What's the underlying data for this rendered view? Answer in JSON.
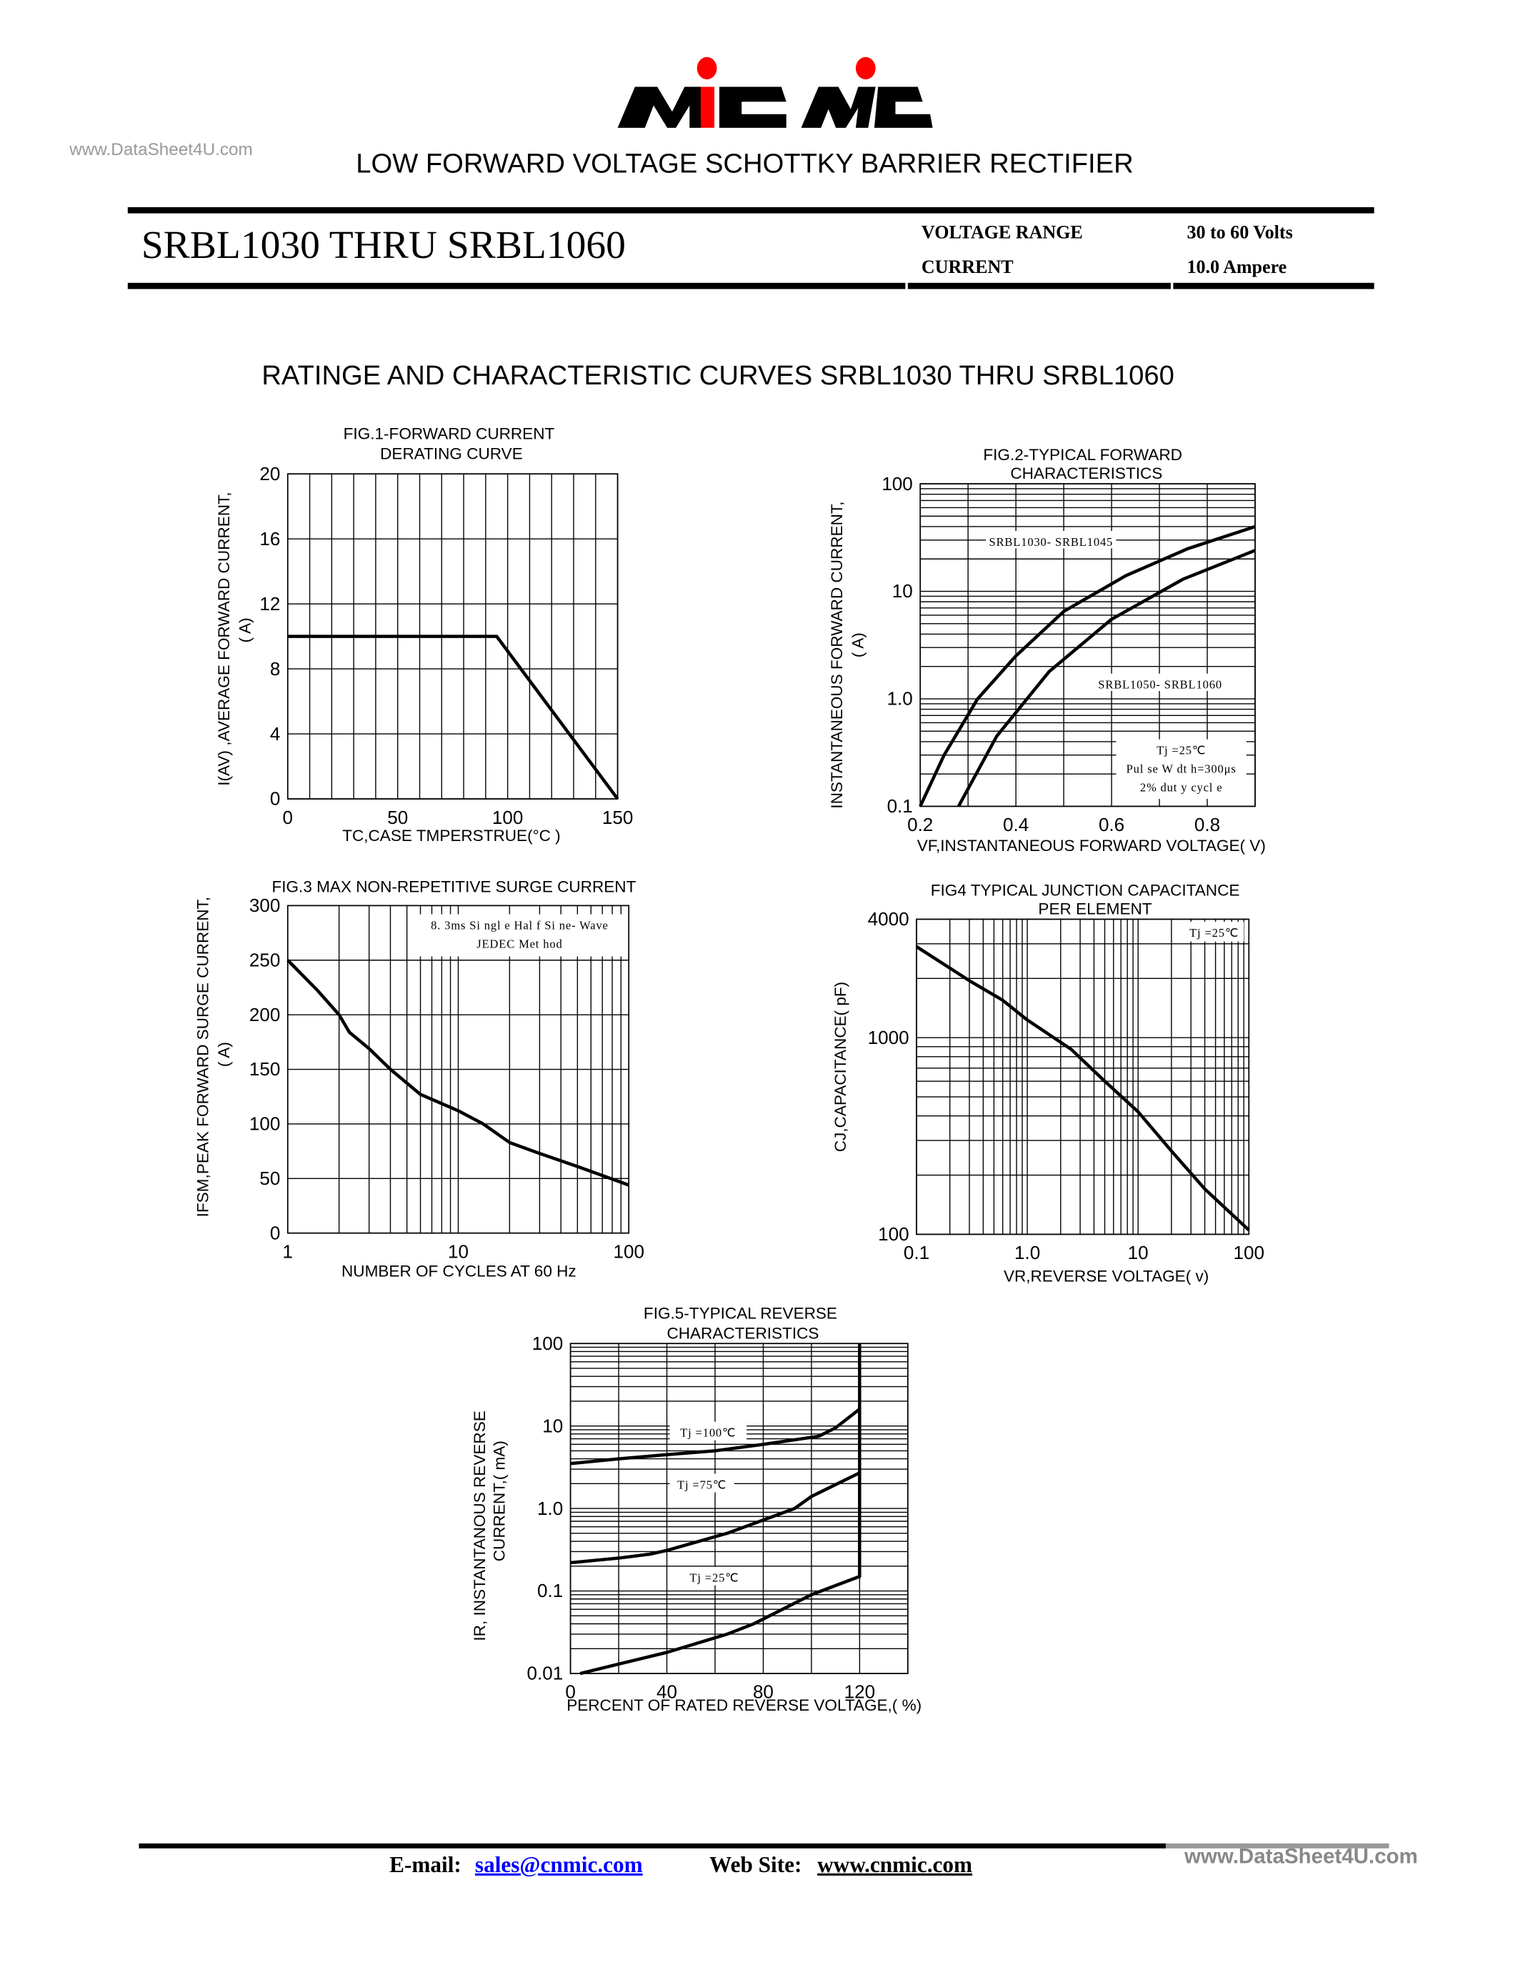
{
  "header": {
    "watermark": "www.DataSheet4U.com",
    "logo_text": "MIC MC",
    "subtitle": "LOW FORWARD VOLTAGE SCHOTTKY BARRIER RECTIFIER",
    "part_title": "SRBL1030 THRU SRBL1060",
    "specs": [
      {
        "label": "VOLTAGE RANGE",
        "value": "30 to 60 Volts"
      },
      {
        "label": "CURRENT",
        "value": "10.0 Ampere"
      }
    ]
  },
  "section_title": "RATINGE AND CHARACTERISTIC CURVES SRBL1030 THRU SRBL1060",
  "chart_data": [
    {
      "id": "fig1",
      "type": "line",
      "title": [
        "FIG.1-FORWARD CURRENT",
        "DERATING CURVE"
      ],
      "ylabel": [
        "I(AV) ,AVERAGE FORWARD CURRENT,",
        "( A)"
      ],
      "xlabel": "TC,CASE TMPERSTRUE(°C )",
      "xscale": "linear",
      "xlim": [
        0,
        150
      ],
      "yscale": "linear",
      "ylim": [
        0,
        20
      ],
      "x_ticks": [
        {
          "value": 0,
          "label": "0"
        },
        {
          "value": 50,
          "label": "50"
        },
        {
          "value": 100,
          "label": "100"
        },
        {
          "value": 150,
          "label": "150"
        }
      ],
      "y_ticks": [
        {
          "value": 0,
          "label": "0"
        },
        {
          "value": 4,
          "label": "4"
        },
        {
          "value": 8,
          "label": "8"
        },
        {
          "value": 12,
          "label": "12"
        },
        {
          "value": 16,
          "label": "16"
        },
        {
          "value": 20,
          "label": "20"
        }
      ],
      "grid": true,
      "series": [
        {
          "points": [
            [
              0,
              10
            ],
            [
              95,
              10
            ],
            [
              150,
              0
            ]
          ]
        }
      ],
      "annotations": []
    },
    {
      "id": "fig2",
      "type": "line",
      "title": [
        "FIG.2-TYPICAL FORWARD",
        "CHARACTERISTICS"
      ],
      "ylabel": [
        "INSTANTANEOUS FORWARD CURRENT,",
        "( A)"
      ],
      "xlabel": "VF,INSTANTANEOUS FORWARD VOLTAGE( V)",
      "xscale": "linear",
      "xlim": [
        0.2,
        0.9
      ],
      "yscale": "log",
      "ylim": [
        0.1,
        100
      ],
      "x_ticks": [
        {
          "value": 0.2,
          "label": "0.2"
        },
        {
          "value": 0.4,
          "label": "0.4"
        },
        {
          "value": 0.6,
          "label": "0.6"
        },
        {
          "value": 0.8,
          "label": "0.8"
        }
      ],
      "y_ticks": [
        {
          "value": 0.1,
          "label": "0.1"
        },
        {
          "value": 1,
          "label": "1.0"
        },
        {
          "value": 10,
          "label": "10"
        },
        {
          "value": 100,
          "label": "100"
        }
      ],
      "grid": true,
      "series": [
        {
          "name": "SRBL1030- SRBL1045",
          "points": [
            [
              0.2,
              0.1
            ],
            [
              0.25,
              0.3
            ],
            [
              0.32,
              1.0
            ],
            [
              0.4,
              2.5
            ],
            [
              0.5,
              6.5
            ],
            [
              0.63,
              14
            ],
            [
              0.76,
              25
            ],
            [
              0.9,
              40
            ]
          ]
        },
        {
          "name": "SRBL1050- SRBL1060",
          "points": [
            [
              0.28,
              0.1
            ],
            [
              0.36,
              0.45
            ],
            [
              0.47,
              1.8
            ],
            [
              0.6,
              5.5
            ],
            [
              0.75,
              13
            ],
            [
              0.9,
              24
            ]
          ]
        }
      ],
      "annotations": [
        "Tj =25℃",
        "Pul se  W dt h=300μs",
        "2% dut y  cycl e"
      ]
    },
    {
      "id": "fig3",
      "type": "line",
      "title": [
        "FIG.3 MAX NON-REPETITIVE SURGE CURRENT"
      ],
      "ylabel": [
        "IFSM,PEAK FORWARD SURGE CURRENT,",
        "( A)"
      ],
      "xlabel": "NUMBER OF CYCLES AT 60 Hz",
      "xscale": "log",
      "xlim": [
        1,
        100
      ],
      "yscale": "linear",
      "ylim": [
        0,
        300
      ],
      "x_ticks": [
        {
          "value": 1,
          "label": "1"
        },
        {
          "value": 10,
          "label": "10"
        },
        {
          "value": 100,
          "label": "100"
        }
      ],
      "y_ticks": [
        {
          "value": 0,
          "label": "0"
        },
        {
          "value": 50,
          "label": "50"
        },
        {
          "value": 100,
          "label": "100"
        },
        {
          "value": 150,
          "label": "150"
        },
        {
          "value": 200,
          "label": "200"
        },
        {
          "value": 250,
          "label": "250"
        },
        {
          "value": 300,
          "label": "300"
        }
      ],
      "grid": true,
      "series": [
        {
          "points": [
            [
              1,
              250
            ],
            [
              1.5,
              222
            ],
            [
              2,
              200
            ],
            [
              2.3,
              184
            ],
            [
              3,
              169
            ],
            [
              4,
              150
            ],
            [
              6,
              127
            ],
            [
              10,
              112
            ],
            [
              14,
              100
            ],
            [
              20,
              83
            ],
            [
              30,
              73
            ],
            [
              50,
              61
            ],
            [
              100,
              44
            ]
          ]
        }
      ],
      "annotations": [
        "8. 3ms  Si ngl e  Hal f  Si ne- Wave",
        "JEDEC  Met hod"
      ]
    },
    {
      "id": "fig4",
      "type": "line",
      "title": [
        "FIG4 TYPICAL JUNCTION CAPACITANCE",
        "PER ELEMENT"
      ],
      "ylabel": [
        "CJ,CAPACITANCE( pF)"
      ],
      "xlabel": "VR,REVERSE VOLTAGE( v)",
      "xscale": "log",
      "xlim": [
        0.1,
        100
      ],
      "yscale": "log",
      "ylim": [
        100,
        4000
      ],
      "x_ticks": [
        {
          "value": 0.1,
          "label": "0.1"
        },
        {
          "value": 1,
          "label": "1.0"
        },
        {
          "value": 10,
          "label": "10"
        },
        {
          "value": 100,
          "label": "100"
        }
      ],
      "y_ticks": [
        {
          "value": 100,
          "label": "100"
        },
        {
          "value": 1000,
          "label": "1000"
        },
        {
          "value": 4000,
          "label": "4000"
        }
      ],
      "grid": true,
      "series": [
        {
          "points": [
            [
              0.1,
              2900
            ],
            [
              0.3,
              1950
            ],
            [
              0.6,
              1550
            ],
            [
              1,
              1230
            ],
            [
              2.5,
              870
            ],
            [
              5,
              600
            ],
            [
              10,
              420
            ],
            [
              20,
              265
            ],
            [
              40,
              170
            ],
            [
              100,
              105
            ]
          ]
        }
      ],
      "annotations": [
        "Tj =25℃"
      ]
    },
    {
      "id": "fig5",
      "type": "line",
      "title": [
        "FIG.5-TYPICAL REVERSE",
        "CHARACTERISTICS"
      ],
      "ylabel": [
        "IR, INSTANTANOUS REVERSE",
        "CURRENT,( mA)"
      ],
      "xlabel": "PERCENT OF RATED REVERSE VOLTAGE,( %)",
      "xscale": "linear",
      "xlim": [
        0,
        140
      ],
      "yscale": "log",
      "ylim": [
        0.01,
        100
      ],
      "x_ticks": [
        {
          "value": 0,
          "label": "0"
        },
        {
          "value": 40,
          "label": "40"
        },
        {
          "value": 80,
          "label": "80"
        },
        {
          "value": 120,
          "label": "120"
        }
      ],
      "y_ticks": [
        {
          "value": 0.01,
          "label": "0.01"
        },
        {
          "value": 0.1,
          "label": "0.1"
        },
        {
          "value": 1,
          "label": "1.0"
        },
        {
          "value": 10,
          "label": "10"
        },
        {
          "value": 100,
          "label": "100"
        }
      ],
      "grid": true,
      "series": [
        {
          "name": "Tj =100℃",
          "points": [
            [
              0,
              3.5
            ],
            [
              20,
              4
            ],
            [
              40,
              4.5
            ],
            [
              60,
              5
            ],
            [
              80,
              6
            ],
            [
              103,
              7.5
            ],
            [
              110,
              9.5
            ],
            [
              120,
              16
            ]
          ]
        },
        {
          "name": "Tj =75℃",
          "points": [
            [
              0,
              0.22
            ],
            [
              20,
              0.25
            ],
            [
              33,
              0.28
            ],
            [
              40,
              0.31
            ],
            [
              65,
              0.5
            ],
            [
              93,
              1.0
            ],
            [
              100,
              1.4
            ],
            [
              120,
              2.7
            ]
          ]
        },
        {
          "name": "Tj =25℃",
          "points": [
            [
              4,
              0.01
            ],
            [
              20,
              0.013
            ],
            [
              40,
              0.018
            ],
            [
              65,
              0.03
            ],
            [
              76,
              0.04
            ],
            [
              100,
              0.09
            ],
            [
              120,
              0.15
            ],
            [
              120,
              100
            ]
          ]
        }
      ],
      "annotations": []
    }
  ],
  "footer": {
    "email_label": "E-mail:",
    "email": "sales@cnmic.com",
    "web_label": "Web Site:",
    "web": "www.cnmic.com",
    "watermark": "www.DataSheet4U.com",
    "link_color": "#0000ff",
    "logo_red": "#ff0000"
  }
}
